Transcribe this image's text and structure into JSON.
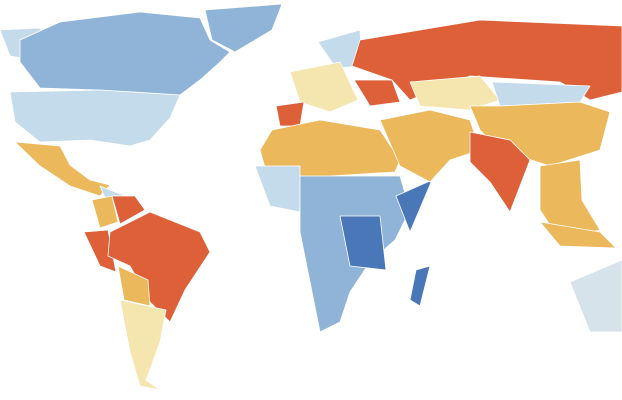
{
  "map": {
    "palette": [
      "#4a77b8",
      "#8fb4d8",
      "#c3dbea",
      "#f5e5ae",
      "#ebb85c",
      "#dd6039",
      "#d6e3ea"
    ]
  }
}
